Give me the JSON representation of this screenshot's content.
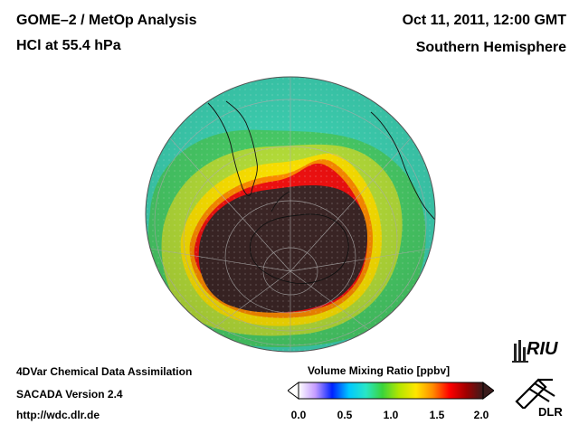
{
  "header": {
    "title": "GOME–2 / MetOp Analysis",
    "subtitle": "HCl at 55.4 hPa",
    "date": "Oct 11, 2011, 12:00 GMT",
    "region": "Southern Hemisphere"
  },
  "footer": {
    "line1": "4DVar Chemical Data Assimilation",
    "line2": "SACADA Version 2.4",
    "line3": "http://wdc.dlr.de"
  },
  "colorbar": {
    "title": "Volume Mixing Ratio [ppbv]",
    "ticks": [
      {
        "label": "0.0",
        "value": 0.0
      },
      {
        "label": "0.5",
        "value": 0.5
      },
      {
        "label": "1.0",
        "value": 1.0
      },
      {
        "label": "1.5",
        "value": 1.5
      },
      {
        "label": "2.0",
        "value": 2.0
      }
    ],
    "min": 0.0,
    "max": 2.0,
    "colors": [
      "#ffffff",
      "#c59cff",
      "#0022ff",
      "#00c8ff",
      "#28e6c8",
      "#3ad43a",
      "#b4e600",
      "#ffe600",
      "#ff8c00",
      "#ff0000",
      "#a00000",
      "#3a1c1c"
    ]
  },
  "logos": {
    "riu": "RIU",
    "dlr": "DLR"
  }
}
